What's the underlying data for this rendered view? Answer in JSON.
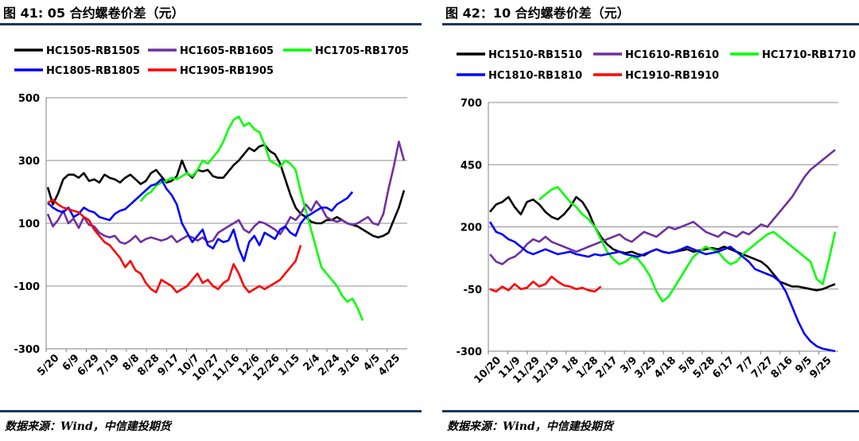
{
  "left": {
    "title": "图 41: 05 合约螺卷价差（元）",
    "source": "数据来源：Wind，中信建投期货",
    "chart_data": {
      "type": "line",
      "ylim": [
        -300,
        500
      ],
      "y_ticks": [
        "500",
        "300",
        "100",
        "-100",
        "-300"
      ],
      "x_ticks": [
        "5/20",
        "6/9",
        "6/29",
        "7/19",
        "8/8",
        "8/28",
        "9/17",
        "10/7",
        "10/27",
        "11/16",
        "12/6",
        "12/26",
        "1/15",
        "2/4",
        "2/24",
        "3/16",
        "4/5",
        "4/25"
      ],
      "grid": "horizontal",
      "legend_position": "top",
      "series": [
        {
          "name": "HC1505-RB1505",
          "color": "#000000",
          "start": 0,
          "values": [
            215,
            160,
            195,
            240,
            255,
            255,
            245,
            260,
            235,
            240,
            230,
            255,
            245,
            240,
            230,
            245,
            255,
            240,
            225,
            235,
            260,
            270,
            250,
            230,
            235,
            250,
            300,
            260,
            245,
            270,
            265,
            270,
            250,
            245,
            245,
            265,
            285,
            300,
            320,
            340,
            330,
            345,
            350,
            330,
            320,
            290,
            240,
            190,
            150,
            130,
            120,
            105,
            100,
            100,
            110,
            110,
            120,
            110,
            100,
            95,
            90,
            80,
            70,
            60,
            55,
            60,
            70,
            110,
            150,
            205
          ]
        },
        {
          "name": "HC1605-RB1605",
          "color": "#7030a0",
          "start": 0,
          "values": [
            130,
            90,
            110,
            140,
            100,
            115,
            85,
            120,
            95,
            90,
            70,
            60,
            55,
            60,
            40,
            35,
            45,
            60,
            40,
            50,
            55,
            50,
            45,
            50,
            60,
            40,
            50,
            60,
            55,
            45,
            55,
            40,
            45,
            70,
            80,
            90,
            100,
            110,
            80,
            70,
            90,
            105,
            100,
            90,
            80,
            65,
            90,
            120,
            110,
            130,
            160,
            140,
            170,
            150,
            120,
            110,
            105,
            110,
            100,
            95,
            100,
            110,
            120,
            100,
            95,
            130,
            210,
            280,
            360,
            300
          ]
        },
        {
          "name": "HC1705-RB1705",
          "color": "#00ff00",
          "start": 18,
          "values": [
            170,
            190,
            200,
            220,
            230,
            235,
            245,
            240,
            250,
            260,
            250,
            270,
            300,
            290,
            310,
            330,
            360,
            400,
            430,
            440,
            410,
            420,
            400,
            390,
            350,
            300,
            290,
            280,
            300,
            290,
            270,
            200,
            140,
            80,
            20,
            -40,
            -60,
            -80,
            -100,
            -130,
            -150,
            -140,
            -170,
            -210
          ]
        },
        {
          "name": "HC1805-RB1805",
          "color": "#0000ff",
          "start": 0,
          "values": [
            165,
            150,
            140,
            135,
            150,
            120,
            130,
            150,
            140,
            135,
            120,
            115,
            110,
            130,
            140,
            145,
            160,
            175,
            190,
            205,
            220,
            225,
            240,
            210,
            190,
            160,
            100,
            70,
            40,
            60,
            80,
            30,
            20,
            50,
            40,
            45,
            80,
            20,
            -20,
            40,
            60,
            30,
            70,
            60,
            50,
            80,
            90,
            70,
            60,
            100,
            120,
            130,
            140,
            150,
            150,
            140,
            160,
            170,
            180,
            200
          ]
        },
        {
          "name": "HC1905-RB1905",
          "color": "#ff0000",
          "start": 0,
          "values": [
            165,
            175,
            160,
            150,
            145,
            140,
            135,
            120,
            110,
            80,
            60,
            40,
            30,
            10,
            -10,
            -40,
            -20,
            -50,
            -60,
            -90,
            -110,
            -120,
            -80,
            -90,
            -100,
            -120,
            -110,
            -100,
            -80,
            -60,
            -90,
            -80,
            -100,
            -110,
            -90,
            -80,
            -30,
            -60,
            -100,
            -120,
            -110,
            -100,
            -110,
            -100,
            -90,
            -80,
            -60,
            -40,
            -20,
            30
          ]
        }
      ]
    }
  },
  "right": {
    "title": "图 42：10 合约螺卷价差（元）",
    "source": "数据来源：Wind，中信建投期货",
    "chart_data": {
      "type": "line",
      "ylim": [
        -300,
        700
      ],
      "y_ticks": [
        "700",
        "450",
        "200",
        "-50",
        "-300"
      ],
      "x_ticks": [
        "10/20",
        "11/9",
        "11/29",
        "12/19",
        "1/8",
        "1/28",
        "2/17",
        "3/9",
        "3/29",
        "4/18",
        "5/8",
        "5/28",
        "6/17",
        "7/7",
        "7/27",
        "8/16",
        "9/5",
        "9/25"
      ],
      "grid": "horizontal",
      "legend_position": "top",
      "series": [
        {
          "name": "HC1510-RB1510",
          "color": "#000000",
          "start": 0,
          "values": [
            260,
            290,
            300,
            320,
            280,
            250,
            300,
            310,
            290,
            260,
            240,
            230,
            250,
            280,
            320,
            300,
            260,
            200,
            160,
            130,
            110,
            100,
            95,
            100,
            90,
            85,
            100,
            110,
            100,
            95,
            100,
            105,
            110,
            100,
            105,
            110,
            115,
            110,
            120,
            110,
            100,
            90,
            80,
            70,
            60,
            40,
            10,
            -20,
            -30,
            -40,
            -40,
            -45,
            -50,
            -55,
            -50,
            -40,
            -30
          ]
        },
        {
          "name": "HC1610-RB1610",
          "color": "#7030a0",
          "start": 0,
          "values": [
            90,
            60,
            50,
            70,
            80,
            100,
            130,
            150,
            140,
            160,
            140,
            130,
            120,
            110,
            100,
            110,
            120,
            130,
            140,
            150,
            160,
            170,
            150,
            140,
            160,
            180,
            170,
            160,
            180,
            200,
            190,
            200,
            210,
            220,
            200,
            180,
            170,
            160,
            180,
            170,
            160,
            180,
            170,
            190,
            210,
            200,
            230,
            260,
            290,
            320,
            360,
            400,
            430,
            450,
            470,
            490,
            510
          ]
        },
        {
          "name": "HC1710-RB1710",
          "color": "#00ff00",
          "start": 8,
          "values": [
            310,
            330,
            350,
            360,
            330,
            300,
            280,
            250,
            230,
            200,
            150,
            100,
            70,
            50,
            60,
            80,
            70,
            40,
            0,
            -60,
            -100,
            -80,
            -40,
            0,
            40,
            80,
            100,
            120,
            110,
            100,
            70,
            50,
            60,
            90,
            110,
            130,
            150,
            170,
            180,
            160,
            140,
            120,
            100,
            80,
            60,
            -10,
            -30,
            70,
            180
          ]
        },
        {
          "name": "HC1810-RB1810",
          "color": "#0000ff",
          "start": 0,
          "values": [
            220,
            180,
            170,
            150,
            140,
            120,
            100,
            90,
            100,
            110,
            100,
            90,
            95,
            100,
            90,
            85,
            80,
            90,
            85,
            90,
            95,
            100,
            90,
            85,
            80,
            90,
            100,
            110,
            100,
            95,
            100,
            110,
            120,
            110,
            100,
            90,
            95,
            100,
            110,
            120,
            100,
            80,
            60,
            30,
            20,
            10,
            0,
            -20,
            -60,
            -120,
            -180,
            -230,
            -260,
            -280,
            -290,
            -295,
            -300
          ]
        },
        {
          "name": "HC1910-RB1910",
          "color": "#ff0000",
          "start": 0,
          "values": [
            -50,
            -60,
            -40,
            -55,
            -30,
            -50,
            -45,
            -20,
            -40,
            -30,
            0,
            -20,
            -35,
            -40,
            -50,
            -45,
            -55,
            -60,
            -40
          ]
        }
      ]
    }
  }
}
